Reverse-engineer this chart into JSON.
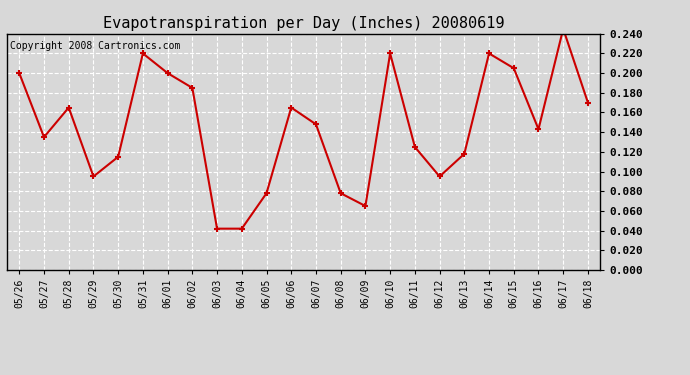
{
  "title": "Evapotranspiration per Day (Inches) 20080619",
  "copyright_text": "Copyright 2008 Cartronics.com",
  "dates": [
    "05/26",
    "05/27",
    "05/28",
    "05/29",
    "05/30",
    "05/31",
    "06/01",
    "06/02",
    "06/03",
    "06/04",
    "06/05",
    "06/06",
    "06/07",
    "06/08",
    "06/09",
    "06/10",
    "06/11",
    "06/12",
    "06/13",
    "06/14",
    "06/15",
    "06/16",
    "06/17",
    "06/18"
  ],
  "values": [
    0.2,
    0.135,
    0.165,
    0.095,
    0.115,
    0.22,
    0.2,
    0.185,
    0.042,
    0.042,
    0.078,
    0.165,
    0.148,
    0.078,
    0.065,
    0.22,
    0.125,
    0.095,
    0.118,
    0.22,
    0.205,
    0.143,
    0.245,
    0.17
  ],
  "line_color": "#cc0000",
  "marker": "+",
  "marker_size": 5,
  "marker_linewidth": 1.5,
  "line_width": 1.5,
  "background_color": "#d8d8d8",
  "grid_color": "#ffffff",
  "ylim": [
    0.0,
    0.24
  ],
  "ytick_step": 0.02,
  "title_fontsize": 11,
  "copyright_fontsize": 7,
  "xtick_fontsize": 7,
  "ytick_fontsize": 8,
  "title_color": "#000000",
  "ax_background": "#d8d8d8"
}
